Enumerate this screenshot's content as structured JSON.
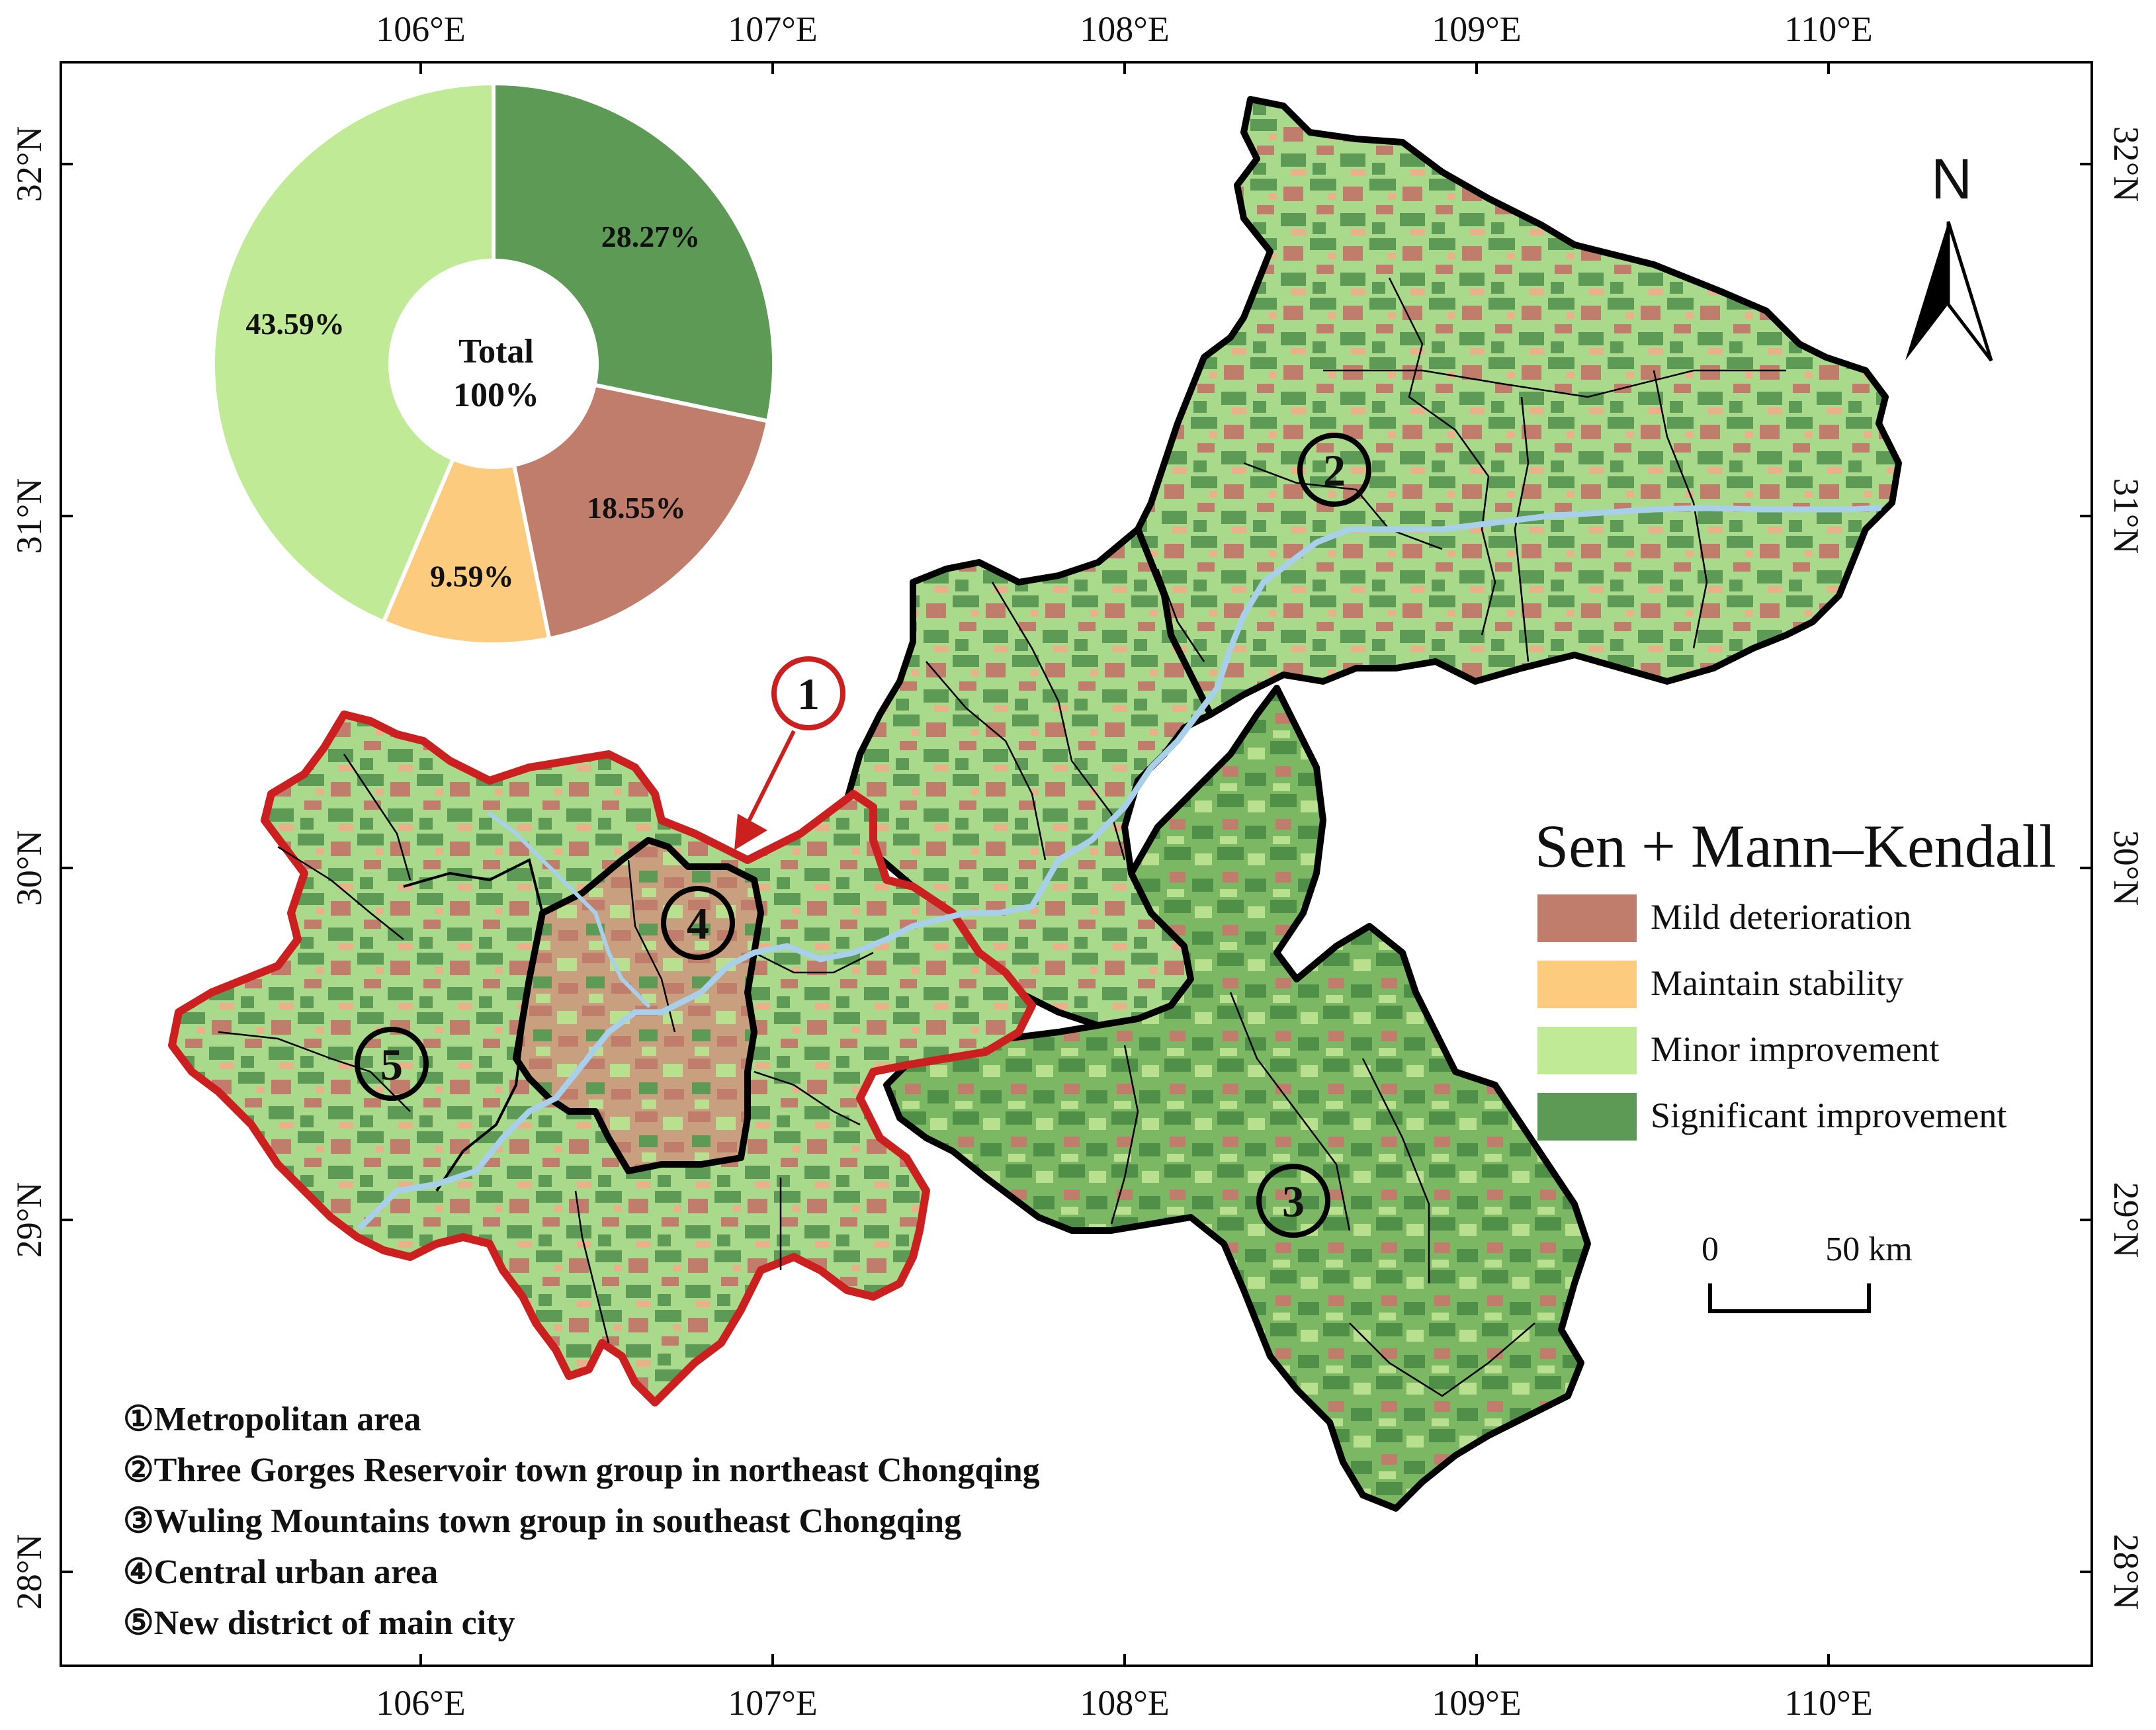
{
  "axes": {
    "lon_labels": [
      "106°E",
      "107°E",
      "108°E",
      "109°E",
      "110°E"
    ],
    "lat_labels": [
      "32°N",
      "31°N",
      "30°N",
      "29°N",
      "28°N"
    ]
  },
  "pie": {
    "center_line1": "Total",
    "center_line2": "100%",
    "slices": [
      {
        "label": "28.27%",
        "value": 28.27,
        "color": "#5c9a55",
        "class": "Significant improvement"
      },
      {
        "label": "18.55%",
        "value": 18.55,
        "color": "#c07d6c",
        "class": "Mild deterioration"
      },
      {
        "label": "9.59%",
        "value": 9.59,
        "color": "#fdcb7e",
        "class": "Maintain stability"
      },
      {
        "label": "43.59%",
        "value": 43.59,
        "color": "#c0ea96",
        "class": "Minor improvement"
      }
    ]
  },
  "legend": {
    "title": "Sen + Mann–Kendall",
    "items": [
      {
        "label": "Mild deterioration",
        "color": "#c07d6c"
      },
      {
        "label": "Maintain stability",
        "color": "#fdcb7e"
      },
      {
        "label": "Minor improvement",
        "color": "#c0ea96"
      },
      {
        "label": "Significant improvement",
        "color": "#5c9a55"
      }
    ]
  },
  "north_arrow": {
    "label": "N"
  },
  "scale_bar": {
    "start": "0",
    "end": "50 km"
  },
  "zones": {
    "markers": [
      "1",
      "2",
      "3",
      "4",
      "5"
    ],
    "list": [
      {
        "num": "①",
        "text": "Metropolitan area",
        "color": "#cc1f1f"
      },
      {
        "num": "②",
        "text": "Three Gorges Reservoir town group in northeast Chongqing",
        "color": "#111111"
      },
      {
        "num": "③",
        "text": "Wuling Mountains town group in southeast Chongqing",
        "color": "#111111"
      },
      {
        "num": "④",
        "text": "Central urban area",
        "color": "#111111"
      },
      {
        "num": "⑤",
        "text": "New district of main city",
        "color": "#111111"
      }
    ]
  },
  "colors": {
    "metro_boundary": "#cc1f1f",
    "zone_boundary": "#000000",
    "river": "#a8d0ea"
  }
}
